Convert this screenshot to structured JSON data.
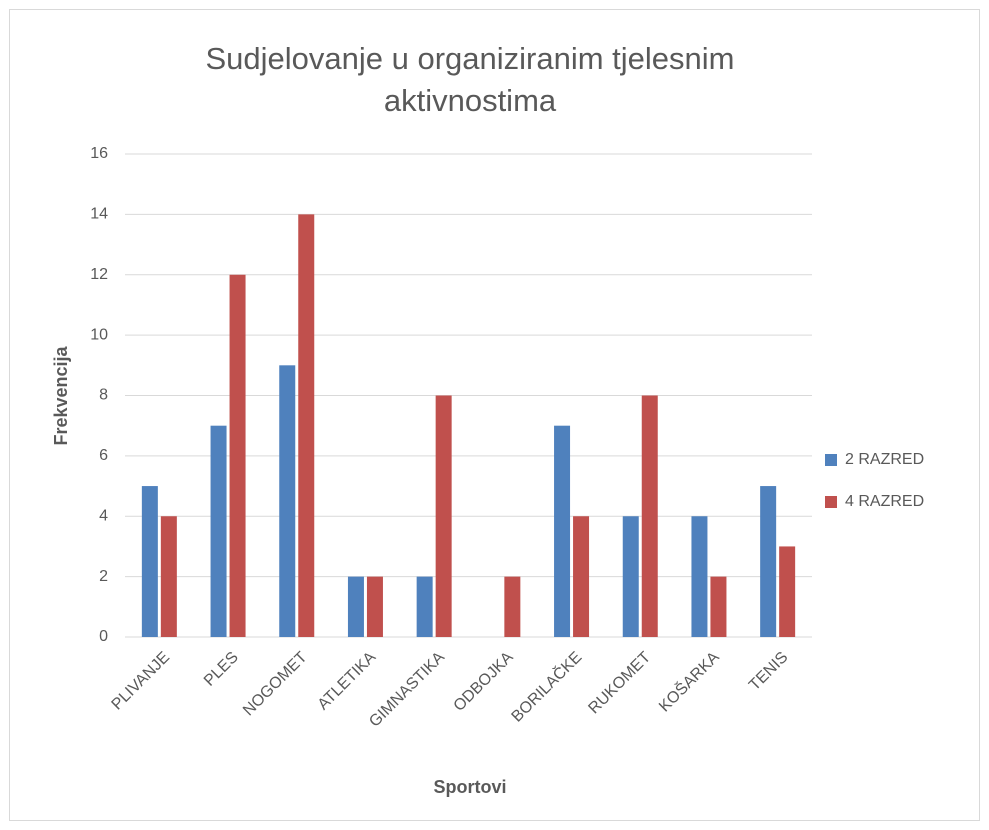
{
  "chart_data": {
    "type": "bar",
    "title": "Sudjelovanje u organiziranim tjelesnim aktivnostima",
    "x_label": "Sportovi",
    "y_label": "Frekvencija",
    "categories": [
      "PLIVANJE",
      "PLES",
      "NOGOMET",
      "ATLETIKA",
      "GIMNASTIKA",
      "ODBOJKA",
      "BORILAČKE",
      "RUKOMET",
      "KOŠARKA",
      "TENIS"
    ],
    "series": [
      {
        "name": "2 RAZRED",
        "color": "#4f81bd",
        "values": [
          5,
          7,
          9,
          2,
          2,
          0,
          7,
          4,
          4,
          5
        ]
      },
      {
        "name": "4 RAZRED",
        "color": "#c0504d",
        "values": [
          4,
          12,
          14,
          2,
          8,
          2,
          4,
          8,
          2,
          3
        ]
      }
    ],
    "ylim": [
      0,
      16
    ],
    "yticks": [
      0,
      2,
      4,
      6,
      8,
      10,
      12,
      14,
      16
    ],
    "grid": true,
    "legend": "right"
  }
}
